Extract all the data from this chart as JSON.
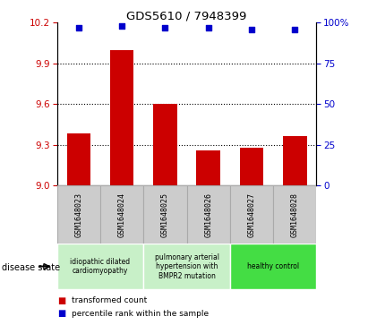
{
  "title": "GDS5610 / 7948399",
  "samples": [
    "GSM1648023",
    "GSM1648024",
    "GSM1648025",
    "GSM1648026",
    "GSM1648027",
    "GSM1648028"
  ],
  "bar_values": [
    9.38,
    10.0,
    9.6,
    9.26,
    9.28,
    9.36
  ],
  "percentile_values": [
    97,
    98,
    97,
    97,
    96,
    96
  ],
  "ylim_left": [
    9.0,
    10.2
  ],
  "ylim_right": [
    0,
    100
  ],
  "yticks_left": [
    9.0,
    9.3,
    9.6,
    9.9,
    10.2
  ],
  "yticks_right": [
    0,
    25,
    50,
    75,
    100
  ],
  "bar_color": "#cc0000",
  "dot_color": "#0000cc",
  "groups": [
    {
      "label": "idiopathic dilated\ncardiomyopathy",
      "span": [
        0,
        2
      ],
      "color": "#c8f0c8"
    },
    {
      "label": "pulmonary arterial\nhypertension with\nBMPR2 mutation",
      "span": [
        2,
        4
      ],
      "color": "#c8f0c8"
    },
    {
      "label": "healthy control",
      "span": [
        4,
        6
      ],
      "color": "#44dd44"
    }
  ],
  "grid_dotted_at": [
    9.3,
    9.6,
    9.9
  ],
  "legend_bar_label": "transformed count",
  "legend_dot_label": "percentile rank within the sample",
  "disease_state_label": "disease state",
  "background_color": "#ffffff",
  "tick_color_left": "#cc0000",
  "tick_color_right": "#0000cc",
  "sample_box_color": "#cccccc",
  "sample_box_edge": "#aaaaaa"
}
